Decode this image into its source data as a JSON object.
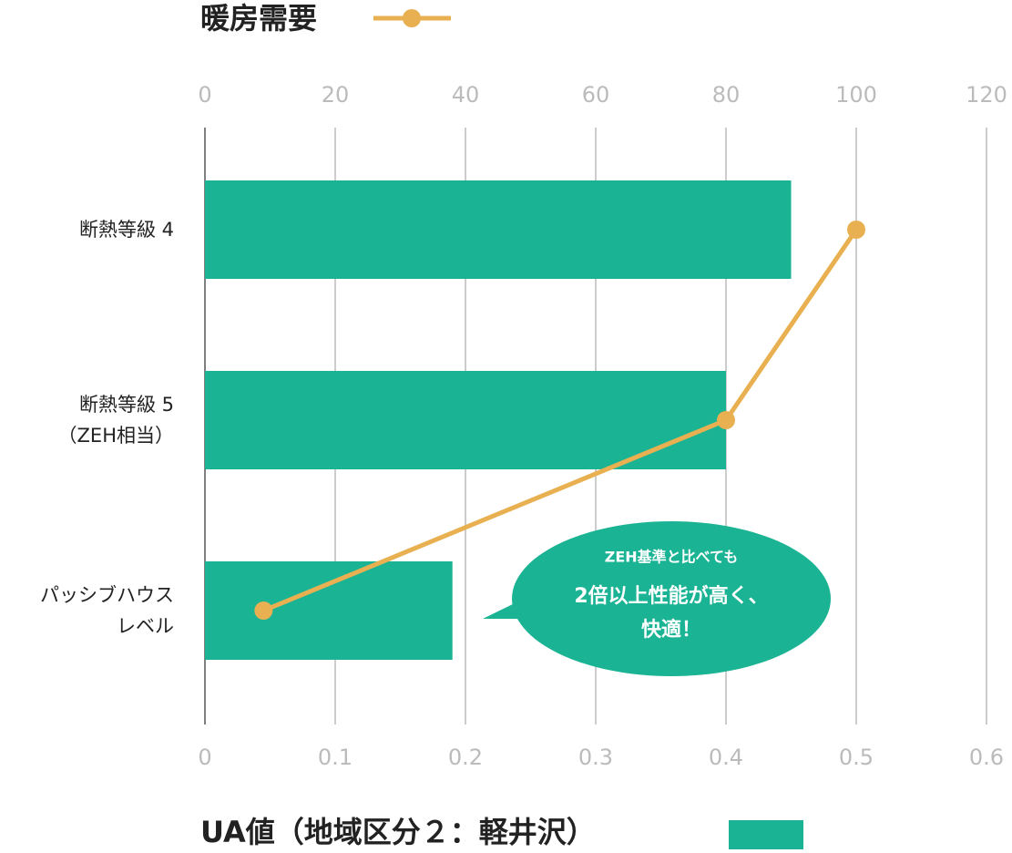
{
  "chart_data": {
    "type": "bar",
    "orientation": "horizontal",
    "categories": [
      "断熱等級 4",
      "断熱等級 5\n（ZEH相当）",
      "パッシブハウス\nレベル"
    ],
    "series": [
      {
        "name": "UA値（地域区分２：軽井沢）",
        "type": "bar",
        "color": "#1ab394",
        "values": [
          0.45,
          0.4,
          0.19
        ]
      },
      {
        "name": "暖房需要",
        "type": "line",
        "axis": "x2",
        "color": "#e8b050",
        "values": [
          100,
          80,
          9
        ]
      }
    ],
    "xlim": [
      0,
      0.6
    ],
    "xticks": [
      0,
      0.1,
      0.2,
      0.3,
      0.4,
      0.5,
      0.6
    ],
    "x2lim": [
      0,
      120
    ],
    "x2ticks": [
      0,
      20,
      40,
      60,
      80,
      100,
      120
    ],
    "grid": true,
    "annotation": {
      "lines": [
        "ZEH基準と比べても",
        "2倍以上性能が高く、",
        "快適！"
      ],
      "color": "#1ab394"
    }
  }
}
